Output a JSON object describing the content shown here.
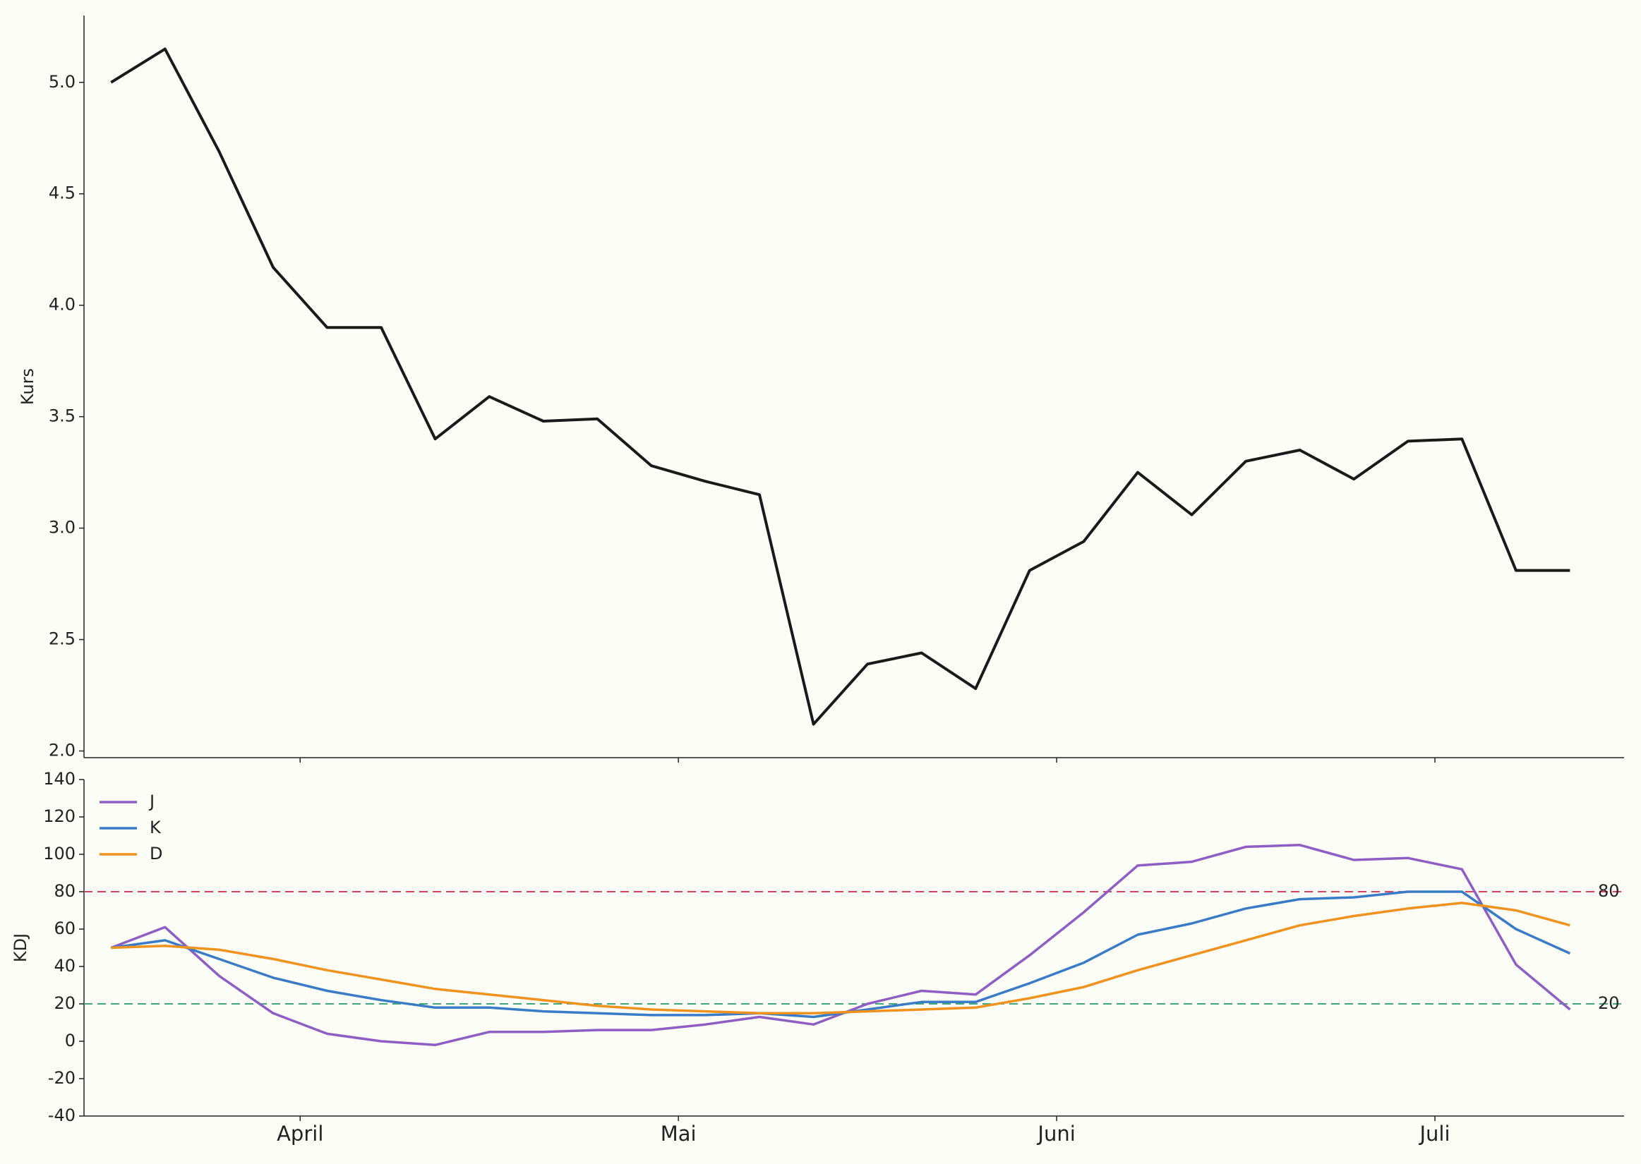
{
  "chart_data": [
    {
      "type": "line",
      "ylabel": "Kurs",
      "x": [
        0,
        1,
        2,
        3,
        4,
        5,
        6,
        7,
        8,
        9,
        10,
        11,
        12,
        13,
        14,
        15,
        16,
        17,
        18,
        19,
        20,
        21,
        22,
        23,
        24,
        25,
        26,
        27
      ],
      "xlim": [
        -0.5,
        28
      ],
      "series": [
        {
          "color": "#1a1a1a",
          "values": [
            5.0,
            5.15,
            4.69,
            4.17,
            3.9,
            3.9,
            3.4,
            3.59,
            3.48,
            3.49,
            3.28,
            3.21,
            3.15,
            2.12,
            2.39,
            2.44,
            2.28,
            2.81,
            2.94,
            3.25,
            3.06,
            3.3,
            3.35,
            3.22,
            3.39,
            3.4,
            2.81,
            2.81
          ]
        }
      ],
      "ylim": [
        1.97,
        5.3
      ],
      "yticks": [
        {
          "value": 2,
          "label": "2.0"
        },
        2.5,
        {
          "value": 3,
          "label": "3.0"
        },
        3.5,
        {
          "value": 4,
          "label": "4.0"
        },
        4.5,
        {
          "value": 5,
          "label": "5.0"
        }
      ]
    },
    {
      "type": "line",
      "ylabel": "KDJ",
      "x": [
        0,
        1,
        2,
        3,
        4,
        5,
        6,
        7,
        8,
        9,
        10,
        11,
        12,
        13,
        14,
        15,
        16,
        17,
        18,
        19,
        20,
        21,
        22,
        23,
        24,
        25,
        26,
        27
      ],
      "xlim": [
        -0.5,
        28
      ],
      "xticks": [
        {
          "value": 3.5,
          "label": "April"
        },
        {
          "value": 10.5,
          "label": "Mai"
        },
        {
          "value": 17.5,
          "label": "Juni"
        },
        {
          "value": 24.5,
          "label": "Juli"
        }
      ],
      "series": [
        {
          "name": "J",
          "color": "#8e5ec4",
          "values": [
            50,
            61,
            35,
            15,
            4,
            0,
            -2,
            5,
            5,
            6,
            6,
            9,
            13,
            9,
            20,
            27,
            25,
            46,
            69,
            94,
            96,
            104,
            105,
            97,
            98,
            92,
            41,
            17
          ]
        },
        {
          "name": "K",
          "color": "#3a7bc8",
          "values": [
            50,
            54,
            44,
            34,
            27,
            22,
            18,
            18,
            16,
            15,
            14,
            14,
            15,
            13,
            17,
            21,
            21,
            31,
            42,
            57,
            63,
            71,
            76,
            77,
            80,
            80,
            60,
            47
          ]
        },
        {
          "name": "D",
          "color": "#f0921e",
          "values": [
            50,
            51,
            49,
            44,
            38,
            33,
            28,
            25,
            22,
            19,
            17,
            16,
            15,
            15,
            16,
            17,
            18,
            23,
            29,
            38,
            46,
            54,
            62,
            67,
            71,
            74,
            70,
            62
          ]
        }
      ],
      "ylim": [
        -40,
        140
      ],
      "yticks": [
        -40,
        -20,
        0,
        20,
        40,
        60,
        80,
        100,
        120,
        140
      ],
      "hlines": [
        {
          "y": 80,
          "color": "#d9435a"
        },
        {
          "y": 20,
          "color": "#3fa878"
        }
      ],
      "legend": "upper left"
    }
  ]
}
